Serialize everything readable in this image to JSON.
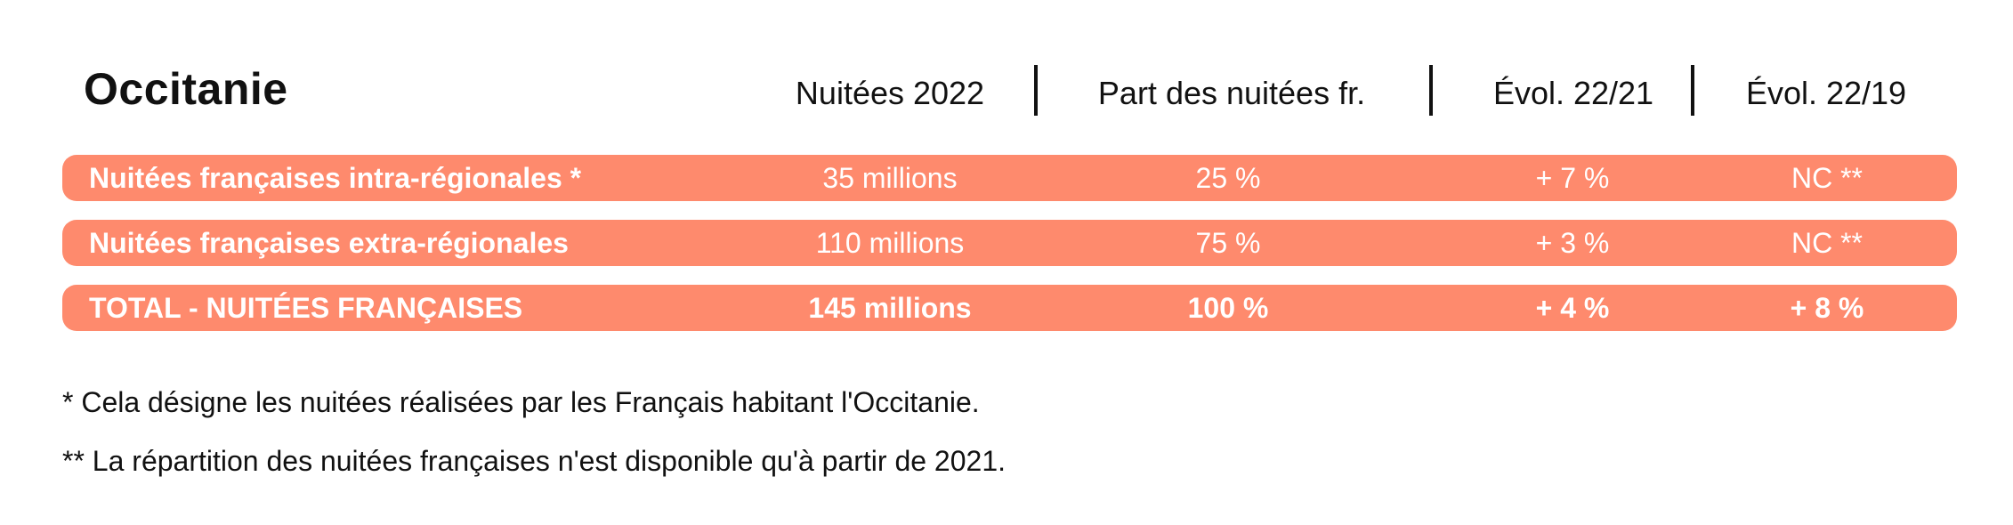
{
  "title": "Occitanie",
  "headers": [
    "Nuitées 2022",
    "Part des nuitées fr.",
    "Évol. 22/21",
    "Évol. 22/19"
  ],
  "rows": [
    {
      "label": "Nuitées françaises intra-régionales *",
      "values": [
        "35 millions",
        "25 %",
        "+ 7 %",
        "NC **"
      ]
    },
    {
      "label": "Nuitées françaises extra-régionales",
      "values": [
        "110 millions",
        "75 %",
        "+ 3 %",
        "NC **"
      ]
    },
    {
      "label": "TOTAL - NUITÉES FRANÇAISES",
      "values": [
        "145 millions",
        "100 %",
        "+ 4 %",
        "+ 8 %"
      ]
    }
  ],
  "footnotes": [
    "* Cela désigne les nuitées réalisées par les Français habitant l'Occitanie.",
    "** La répartition des nuitées françaises n'est disponible qu'à partir de 2021."
  ],
  "colors": {
    "row_background": "#fe8a6d",
    "row_text": "#ffffff",
    "text": "#111111"
  }
}
